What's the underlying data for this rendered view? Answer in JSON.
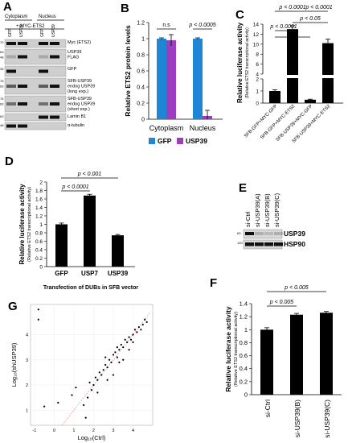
{
  "panels": {
    "A": {
      "label": "A",
      "col_cyto": "Cytoplasm",
      "col_nuc": "Nucleus",
      "plus_myc": "+ MYC-ETS2",
      "lanes": [
        "GFP",
        "USP39",
        "GFP",
        "USP39"
      ],
      "blots": [
        {
          "label": "Myc (ETS2)",
          "mw": "70"
        },
        {
          "label": "USP39",
          "mw": "63"
        },
        {
          "label": "FLAG",
          "mw": "48"
        },
        {
          "label": "GFP",
          "mw": "35"
        },
        {
          "label": "SFB-USP39",
          "mw": "75"
        },
        {
          "label": "endog USP39",
          "mw": "63"
        },
        {
          "label": "(long exp.)",
          "mw": ""
        },
        {
          "label": "SFB-USP39",
          "mw": "75"
        },
        {
          "label": "endog USP39",
          "mw": "63"
        },
        {
          "label": "(short exp.)",
          "mw": ""
        },
        {
          "label": "Lamin B1",
          "mw": "63"
        },
        {
          "label": "α-tubulin",
          "mw": "48"
        }
      ]
    },
    "B": {
      "label": "B",
      "ylabel": "Relative  ETS2 protein levels",
      "yticks": [
        "0",
        "0.2",
        "0.4",
        "0.6",
        "0.8",
        "1",
        "1.2"
      ],
      "ns": "n.s",
      "pval": "p < 0.0005",
      "categories": [
        "Cytoplasm",
        "Nucleus"
      ],
      "legend": [
        "GFP",
        "USP39"
      ]
    },
    "C": {
      "label": "C",
      "ylabel": "Relative luciferase activity",
      "ylabel2": "(Relative ETS2 transcriptional activity)",
      "yticks": [
        "0",
        "1",
        "2",
        "4",
        "6",
        "8",
        "10",
        "12",
        "14"
      ],
      "pvals": [
        "p < 0.0001",
        "p < 0.0001",
        "p < 0.05",
        "p < 0.0001"
      ],
      "categories": [
        "SFB-GFP+MYC-GFP",
        "SFB-GFP+MYC-ETS2",
        "SFB-USP39+MYC-GFP",
        "SFB-USP39+MYC-ETS2"
      ]
    },
    "D": {
      "label": "D",
      "ylabel": "Relative luciferase activity",
      "ylabel2": "(Relative ETS2 transcriptional activity)",
      "yticks": [
        "0",
        "0.2",
        "0.4",
        "0.6",
        "0.8",
        "1",
        "1.2",
        "1.4",
        "1.6",
        "1.8",
        "2"
      ],
      "pvals": [
        "p < 0.001",
        "p < 0.0001"
      ],
      "categories": [
        "GFP",
        "USP7",
        "USP39"
      ],
      "xlabel": "Transfection of DUBs in SFB vector"
    },
    "E": {
      "label": "E",
      "lanes": [
        "si-Ctrl",
        "si-USP39(A)",
        "si-USP39(B)",
        "si-USP39(C)"
      ],
      "blots": [
        {
          "label": "USP39",
          "mw": "63"
        },
        {
          "label": "HSP90",
          "mw": "100"
        }
      ]
    },
    "F": {
      "label": "F",
      "ylabel": "Relative luciferase activity",
      "ylabel2": "(Relative ETS2 transcriptional activity)",
      "yticks": [
        "0",
        "0.2",
        "0.4",
        "0.6",
        "0.8",
        "1",
        "1.2",
        "1.4"
      ],
      "pvals": [
        "p < 0.005",
        "p < 0.005"
      ],
      "categories": [
        "si-Ctrl",
        "si-USP39(B)",
        "si-USP39(C)"
      ]
    },
    "G": {
      "label": "G",
      "xlabel": "Log₁₀(Ctrl)",
      "ylabel": "Log₁₀(shUSP39)",
      "xticks": [
        "-1",
        "0",
        "1",
        "2",
        "3",
        "4"
      ],
      "yticks": [
        "1",
        "2",
        "3",
        "4"
      ]
    }
  },
  "chart_data": [
    {
      "type": "bar",
      "panel": "B",
      "categories": [
        "Cytoplasm",
        "Nucleus"
      ],
      "series": [
        {
          "name": "GFP",
          "values": [
            1.0,
            1.0
          ],
          "errors": [
            0.01,
            0.01
          ],
          "color": "#1f86d6"
        },
        {
          "name": "USP39",
          "values": [
            0.98,
            0.04
          ],
          "errors": [
            0.07,
            0.07
          ],
          "color": "#9b3dbf"
        }
      ],
      "ylabel": "Relative  ETS2 protein levels",
      "ylim": [
        0,
        1.2
      ]
    },
    {
      "type": "bar",
      "panel": "C",
      "categories": [
        "SFB-GFP+MYC-GFP",
        "SFB-GFP+MYC-ETS2",
        "SFB-USP39+MYC-GFP",
        "SFB-USP39+MYC-ETS2"
      ],
      "values": [
        1.0,
        13.0,
        0.28,
        10.2
      ],
      "errors": [
        0.1,
        0.7,
        0.04,
        0.8
      ],
      "ylabel": "Relative luciferase activity",
      "broken_axis": [
        2,
        4
      ],
      "ylim": [
        0,
        14
      ]
    },
    {
      "type": "bar",
      "panel": "D",
      "categories": [
        "GFP",
        "USP7",
        "USP39"
      ],
      "values": [
        1.0,
        1.68,
        0.74
      ],
      "errors": [
        0.03,
        0.03,
        0.02
      ],
      "ylabel": "Relative luciferase activity",
      "xlabel": "Transfection of DUBs in SFB vector",
      "ylim": [
        0,
        2
      ]
    },
    {
      "type": "bar",
      "panel": "F",
      "categories": [
        "si-Ctrl",
        "si-USP39(B)",
        "si-USP39(C)"
      ],
      "values": [
        1.0,
        1.23,
        1.26
      ],
      "errors": [
        0.03,
        0.02,
        0.02
      ],
      "ylabel": "Relative luciferase activity",
      "ylim": [
        0,
        1.4
      ]
    },
    {
      "type": "scatter",
      "panel": "G",
      "xlabel": "Log₁₀(Ctrl)",
      "ylabel": "Log₁₀(shUSP39)",
      "xlim": [
        -1.2,
        5
      ],
      "ylim": [
        0.4,
        5.2
      ],
      "points": [
        [
          -0.8,
          5.0
        ],
        [
          -0.8,
          4.6
        ],
        [
          -0.5,
          1.15
        ],
        [
          0.2,
          1.3
        ],
        [
          0.9,
          1.6
        ],
        [
          1.1,
          1.9
        ],
        [
          1.5,
          1.2
        ],
        [
          1.6,
          0.7
        ],
        [
          1.7,
          1.5
        ],
        [
          1.8,
          2.1
        ],
        [
          2.0,
          2.0
        ],
        [
          2.1,
          2.3
        ],
        [
          2.2,
          2.2
        ],
        [
          2.3,
          2.5
        ],
        [
          2.4,
          2.4
        ],
        [
          2.5,
          2.6
        ],
        [
          2.6,
          2.8
        ],
        [
          2.6,
          3.1
        ],
        [
          2.7,
          2.7
        ],
        [
          2.8,
          3.0
        ],
        [
          2.9,
          2.9
        ],
        [
          3.0,
          3.2
        ],
        [
          3.0,
          2.4
        ],
        [
          3.1,
          3.3
        ],
        [
          3.2,
          3.1
        ],
        [
          3.2,
          3.5
        ],
        [
          3.3,
          3.4
        ],
        [
          3.4,
          3.6
        ],
        [
          3.5,
          3.5
        ],
        [
          3.5,
          3.0
        ],
        [
          3.6,
          3.8
        ],
        [
          3.7,
          3.7
        ],
        [
          3.8,
          3.9
        ],
        [
          3.9,
          3.8
        ],
        [
          4.0,
          4.0
        ],
        [
          4.1,
          4.2
        ],
        [
          4.2,
          4.1
        ],
        [
          4.3,
          4.3
        ],
        [
          4.4,
          4.2
        ],
        [
          4.5,
          4.4
        ],
        [
          4.6,
          4.6
        ],
        [
          4.7,
          4.5
        ],
        [
          1.9,
          1.8
        ],
        [
          2.2,
          1.7
        ],
        [
          2.7,
          2.2
        ],
        [
          3.3,
          2.9
        ],
        [
          3.8,
          3.4
        ],
        [
          4.0,
          3.7
        ]
      ]
    }
  ]
}
